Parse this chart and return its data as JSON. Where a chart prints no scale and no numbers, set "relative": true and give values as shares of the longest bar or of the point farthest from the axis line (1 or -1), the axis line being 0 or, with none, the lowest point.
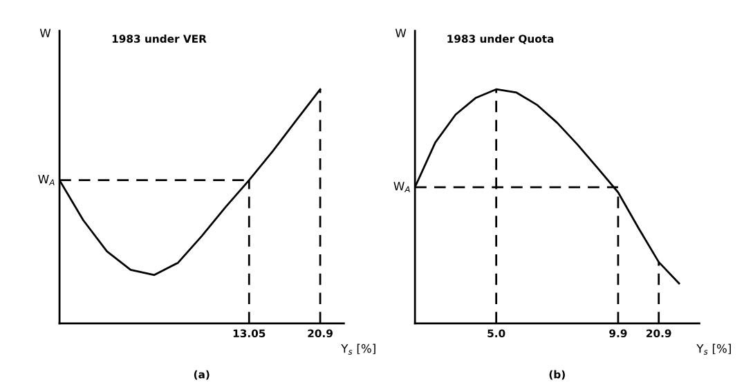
{
  "chart_data": [
    {
      "type": "line",
      "title": "1983 under VER",
      "xlabel": "Y$_{s}$ [%]",
      "ylabel": "W",
      "relative": true,
      "categories": [
        null,
        null,
        null,
        null,
        null,
        null,
        null,
        null,
        "13.05",
        null,
        null,
        "20.9"
      ],
      "series": [
        {
          "color": "#000000",
          "values": [
            0.612,
            0.441,
            0.308,
            0.229,
            0.207,
            0.259,
            0.373,
            0.496,
            0.612,
            0.736,
            0.869,
            1.0
          ]
        }
      ],
      "ref_lines": [
        {
          "axis": "y",
          "value": 0.612,
          "label": "W$_{A}$",
          "line_style": "dashed"
        },
        {
          "axis": "x",
          "value": "13.05",
          "line_style": "dashed"
        },
        {
          "axis": "x",
          "value": "20.9",
          "line_style": "dashed"
        }
      ],
      "annotations": [
        "(a)"
      ],
      "grid": false,
      "legend": false
    },
    {
      "type": "line",
      "title": "1983 under Quota",
      "xlabel": "Y$_{s}$ [%]",
      "ylabel": "W",
      "relative": true,
      "categories": [
        null,
        null,
        null,
        null,
        "5.0",
        null,
        null,
        null,
        null,
        null,
        "9.9",
        null,
        "20.9",
        null
      ],
      "series": [
        {
          "color": "#000000",
          "values": [
            0.582,
            0.773,
            0.892,
            0.964,
            1.0,
            0.986,
            0.934,
            0.857,
            0.764,
            0.663,
            0.56,
            0.408,
            0.262,
            0.171
          ]
        }
      ],
      "ref_lines": [
        {
          "axis": "y",
          "value": 0.582,
          "label": "W$_{A}$",
          "line_style": "dashed"
        },
        {
          "axis": "x",
          "value": "5.0",
          "line_style": "dashed"
        },
        {
          "axis": "x",
          "value": "9.9",
          "line_style": "dashed"
        },
        {
          "axis": "x",
          "value": "20.9",
          "line_style": "dashed"
        }
      ],
      "annotations": [
        "(b)"
      ],
      "grid": false,
      "legend": false
    }
  ]
}
